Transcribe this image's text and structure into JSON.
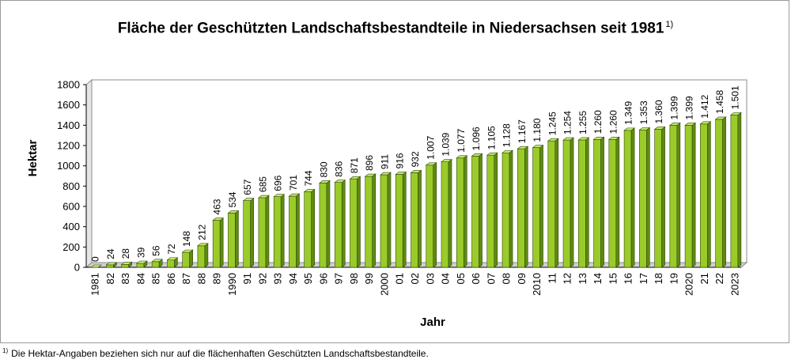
{
  "title": "Fläche der Geschützten Landschaftsbestandteile in Niedersachsen seit 1981",
  "title_superscript": "1)",
  "footnote_marker": "1)",
  "footnote": "Die Hektar-Angaben beziehen sich nur auf die flächenhaften Geschützten Landschaftsbestandteile.",
  "colors": {
    "bar_front": "#9bcb2a",
    "bar_top": "#c8e87a",
    "bar_side": "#5f8a14",
    "wall": "#ffffff",
    "axis": "#000000"
  },
  "chart_data": {
    "type": "bar",
    "title": "Fläche der Geschützten Landschaftsbestandteile in Niedersachsen seit 1981",
    "xlabel": "Jahr",
    "ylabel": "Hektar",
    "ylim": [
      0,
      1800
    ],
    "yticks": [
      "0",
      "200",
      "400",
      "600",
      "800",
      "1000",
      "1200",
      "1400",
      "1600",
      "1800"
    ],
    "categories": [
      "1981",
      "82",
      "83",
      "84",
      "85",
      "86",
      "87",
      "88",
      "89",
      "1990",
      "91",
      "92",
      "93",
      "94",
      "95",
      "96",
      "97",
      "98",
      "99",
      "2000",
      "01",
      "02",
      "03",
      "04",
      "05",
      "06",
      "07",
      "08",
      "09",
      "2010",
      "11",
      "12",
      "13",
      "14",
      "15",
      "16",
      "17",
      "18",
      "19",
      "2020",
      "21",
      "22",
      "2023"
    ],
    "values": [
      0,
      24,
      28,
      39,
      56,
      72,
      148,
      212,
      463,
      534,
      657,
      685,
      696,
      701,
      744,
      830,
      836,
      871,
      896,
      911,
      916,
      932,
      1007,
      1039,
      1077,
      1096,
      1105,
      1128,
      1167,
      1180,
      1245,
      1254,
      1255,
      1260,
      1260,
      1349,
      1353,
      1360,
      1399,
      1399,
      1412,
      1458,
      1501
    ],
    "labels": [
      "0",
      "24",
      "28",
      "39",
      "56",
      "72",
      "148",
      "212",
      "463",
      "534",
      "657",
      "685",
      "696",
      "701",
      "744",
      "830",
      "836",
      "871",
      "896",
      "911",
      "916",
      "932",
      "1.007",
      "1.039",
      "1.077",
      "1.096",
      "1.105",
      "1.128",
      "1.167",
      "1.180",
      "1.245",
      "1.254",
      "1.255",
      "1.260",
      "1.260",
      "1.349",
      "1.353",
      "1.360",
      "1.399",
      "1.399",
      "1.412",
      "1.458",
      "1.501"
    ],
    "grid": false,
    "legend": "none"
  }
}
